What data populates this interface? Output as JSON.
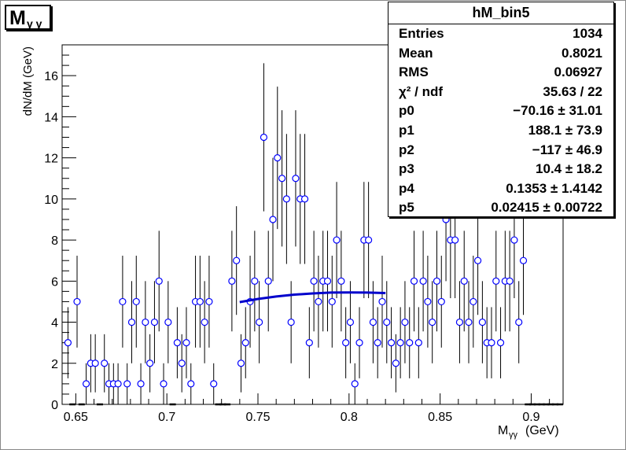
{
  "title_main": "M",
  "title_sub": "γ γ",
  "stats": {
    "title": "hM_bin5",
    "rows": [
      {
        "label": "Entries",
        "value": "1034"
      },
      {
        "label": "Mean",
        "value": "0.8021"
      },
      {
        "label": "RMS",
        "value": "0.06927"
      },
      {
        "label": "χ² / ndf",
        "value": "35.63 / 22"
      },
      {
        "label": "p0",
        "value": "−70.16 ± 31.01"
      },
      {
        "label": "p1",
        "value": "188.1 ± 73.9"
      },
      {
        "label": "p2",
        "value": "−117 ± 46.9"
      },
      {
        "label": "p3",
        "value": "10.4 ± 18.2"
      },
      {
        "label": "p4",
        "value": "0.1353 ± 1.4142"
      },
      {
        "label": "p5",
        "value": "0.02415 ± 0.00722"
      }
    ]
  },
  "chart_data": {
    "type": "scatter",
    "ylabel": "dN/dM (GeV)",
    "xlabel_main": "M",
    "xlabel_sub": "γγ",
    "xlabel_unit": "(GeV)",
    "xlim": [
      0.6425,
      0.9175
    ],
    "ylim": [
      0,
      17.5
    ],
    "xticks": [
      {
        "value": 0.65,
        "label": "0.65"
      },
      {
        "value": 0.7,
        "label": "0.7"
      },
      {
        "value": 0.75,
        "label": "0.75"
      },
      {
        "value": 0.8,
        "label": "0.8"
      },
      {
        "value": 0.85,
        "label": "0.85"
      },
      {
        "value": 0.9,
        "label": "0.9"
      }
    ],
    "yticks": [
      {
        "value": 0,
        "label": "0"
      },
      {
        "value": 2,
        "label": "2"
      },
      {
        "value": 4,
        "label": "4"
      },
      {
        "value": 6,
        "label": "6"
      },
      {
        "value": 8,
        "label": "8"
      },
      {
        "value": 10,
        "label": "10"
      },
      {
        "value": 12,
        "label": "12"
      },
      {
        "value": 14,
        "label": "14"
      },
      {
        "value": 16,
        "label": "16"
      }
    ],
    "marker_color": "#0000ff",
    "fit_color": "#0000cc",
    "x": [
      0.6432,
      0.6457,
      0.6482,
      0.6507,
      0.6532,
      0.6557,
      0.6582,
      0.6607,
      0.6632,
      0.6657,
      0.6682,
      0.6707,
      0.6732,
      0.6757,
      0.6782,
      0.6807,
      0.6832,
      0.6857,
      0.6882,
      0.6907,
      0.6932,
      0.6957,
      0.6982,
      0.7007,
      0.7032,
      0.7057,
      0.7082,
      0.7107,
      0.7132,
      0.7157,
      0.7182,
      0.7207,
      0.7232,
      0.7257,
      0.7282,
      0.7307,
      0.7332,
      0.7357,
      0.7382,
      0.7407,
      0.7432,
      0.7457,
      0.7482,
      0.7507,
      0.7532,
      0.7557,
      0.7582,
      0.7607,
      0.7632,
      0.7657,
      0.7682,
      0.7707,
      0.7732,
      0.7757,
      0.7782,
      0.7807,
      0.7832,
      0.7857,
      0.7882,
      0.7907,
      0.7932,
      0.7957,
      0.7982,
      0.8007,
      0.8032,
      0.8057,
      0.8082,
      0.8107,
      0.8132,
      0.8157,
      0.8182,
      0.8207,
      0.8232,
      0.8257,
      0.8282,
      0.8307,
      0.8332,
      0.8357,
      0.8382,
      0.8407,
      0.8432,
      0.8457,
      0.8482,
      0.8507,
      0.8532,
      0.8557,
      0.8582,
      0.8607,
      0.8632,
      0.8657,
      0.8682,
      0.8707,
      0.8732,
      0.8757,
      0.8782,
      0.8807,
      0.8832,
      0.8857,
      0.8882,
      0.8907,
      0.8932,
      0.8957,
      0.8982,
      0.9007,
      0.9032,
      0.9057,
      0.9082,
      0.9107,
      0.9132,
      0.9157
    ],
    "y": [
      0,
      3,
      0,
      5,
      0,
      1,
      2,
      2,
      0,
      2,
      1,
      1,
      1,
      5,
      1,
      4,
      5,
      1,
      4,
      2,
      4,
      6,
      1,
      4,
      0,
      3,
      2,
      3,
      1,
      5,
      5,
      4,
      5,
      1,
      0,
      0,
      0,
      6,
      7,
      2,
      3,
      5,
      6,
      4,
      13,
      6,
      9,
      12,
      11,
      10,
      4,
      11,
      10,
      10,
      3,
      6,
      5,
      6,
      6,
      5,
      8,
      6,
      3,
      4,
      1,
      3,
      8,
      8,
      4,
      3,
      5,
      4,
      3,
      2,
      3,
      4,
      3,
      6,
      3,
      6,
      5,
      4,
      6,
      5,
      9,
      8,
      8,
      4,
      6,
      4,
      5,
      7,
      4,
      3,
      3,
      6,
      3,
      6,
      6,
      8,
      4,
      7,
      0,
      0,
      0,
      0,
      0,
      0,
      0,
      0
    ],
    "fit_x": [
      0.74,
      0.75,
      0.76,
      0.77,
      0.78,
      0.79,
      0.8,
      0.81,
      0.82
    ],
    "fit_y": [
      4.98,
      5.13,
      5.25,
      5.34,
      5.4,
      5.44,
      5.45,
      5.44,
      5.42
    ]
  }
}
